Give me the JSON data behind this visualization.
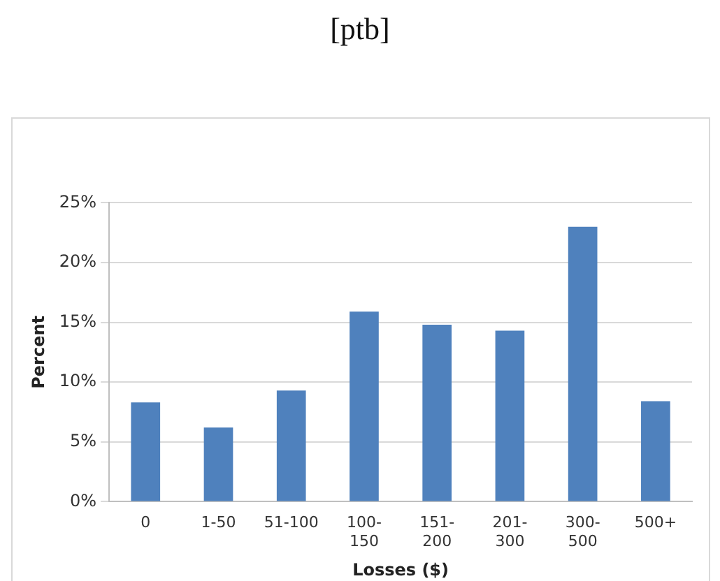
{
  "chart_data": {
    "type": "bar",
    "title": "[ptb]",
    "xlabel": "Losses ($)",
    "ylabel": "Percent",
    "categories": [
      "0",
      "1-50",
      "51-100",
      "100-150",
      "151-200",
      "201-300",
      "300-500",
      "500+"
    ],
    "values": [
      8.3,
      6.2,
      9.3,
      15.9,
      14.8,
      14.3,
      23.0,
      8.4
    ],
    "color": "#4f81bd",
    "ylim": [
      0,
      25
    ],
    "yticks": [
      {
        "value": 0,
        "label": "0%"
      },
      {
        "value": 5,
        "label": "5%"
      },
      {
        "value": 10,
        "label": "10%"
      },
      {
        "value": 15,
        "label": "15%"
      },
      {
        "value": 20,
        "label": "20%"
      },
      {
        "value": 25,
        "label": "25%"
      }
    ],
    "grid": "y",
    "legend": false
  }
}
